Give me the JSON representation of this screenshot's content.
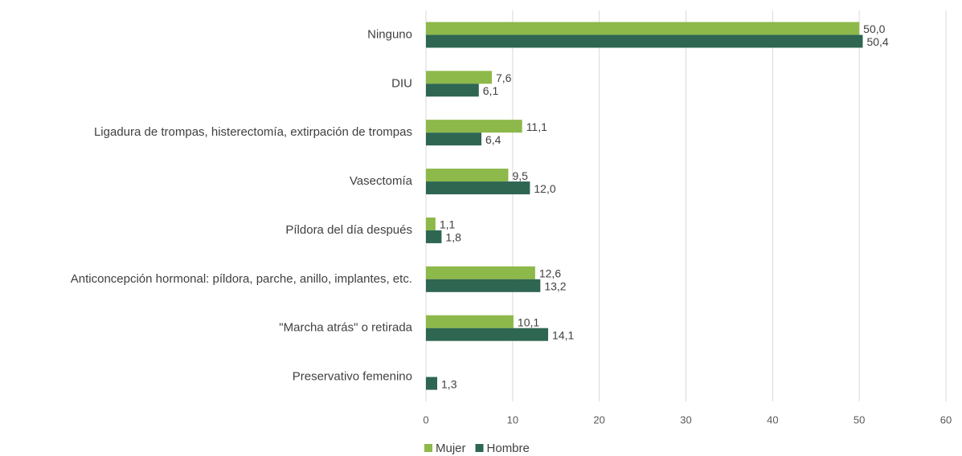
{
  "chart_data": {
    "type": "bar",
    "orientation": "horizontal",
    "categories": [
      "Ninguno",
      "DIU",
      "Ligadura de trompas, histerectomía, extirpación de trompas",
      "Vasectomía",
      "Píldora del día después",
      "Anticoncepción hormonal: píldora, parche, anillo, implantes, etc.",
      "\"Marcha atrás\" o retirada",
      "Preservativo femenino"
    ],
    "series": [
      {
        "name": "Mujer",
        "color": "#8db84a",
        "values": [
          50.0,
          7.6,
          11.1,
          9.5,
          1.1,
          12.6,
          10.1,
          null
        ],
        "value_labels": [
          "50,0",
          "7,6",
          "11,1",
          "9,5",
          "1,1",
          "12,6",
          "10,1",
          null
        ]
      },
      {
        "name": "Hombre",
        "color": "#2e6652",
        "values": [
          50.4,
          6.1,
          6.4,
          12.0,
          1.8,
          13.2,
          14.1,
          1.3
        ],
        "value_labels": [
          "50,4",
          "6,1",
          "6,4",
          "12,0",
          "1,8",
          "13,2",
          "14,1",
          "1,3"
        ]
      }
    ],
    "xlim": [
      0,
      60
    ],
    "xticks": [
      0,
      10,
      20,
      30,
      40,
      50,
      60
    ],
    "grid": true,
    "legend": "bottom"
  }
}
